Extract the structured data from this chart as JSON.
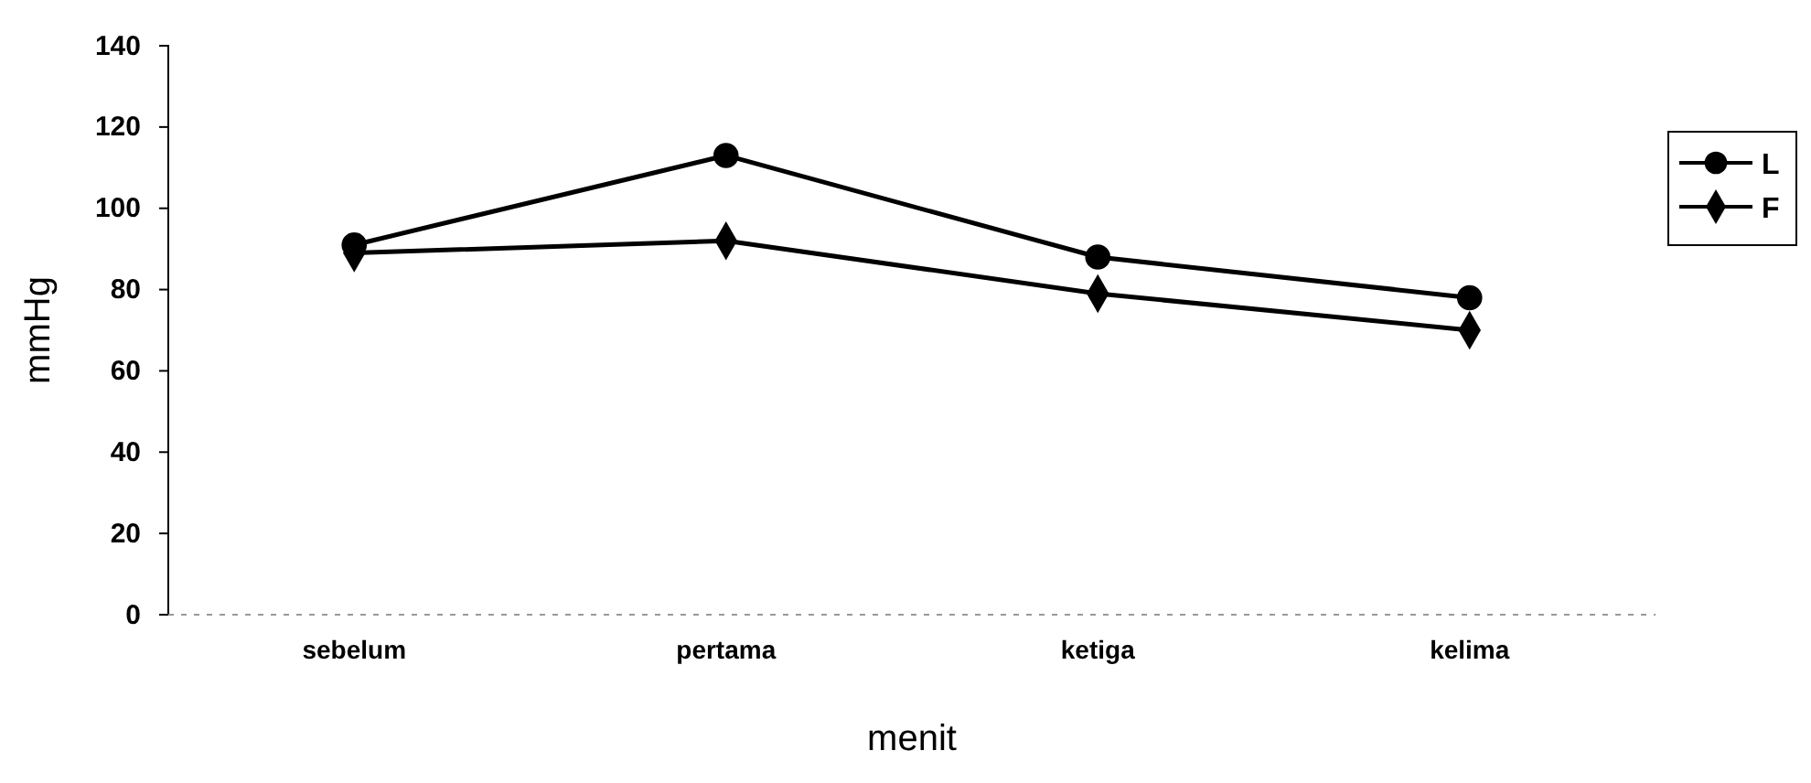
{
  "chart_data": {
    "type": "line",
    "xlabel": "menit",
    "ylabel": "mmHg",
    "categories": [
      "sebelum",
      "pertama",
      "ketiga",
      "kelima"
    ],
    "series": [
      {
        "name": "L",
        "color": "#000000",
        "marker": "circle",
        "values": [
          91,
          113,
          88,
          78
        ]
      },
      {
        "name": "F",
        "color": "#000000",
        "marker": "diamond",
        "values": [
          89,
          92,
          79,
          70
        ]
      }
    ],
    "ylim": [
      0,
      140
    ],
    "yticks": [
      0,
      20,
      40,
      60,
      80,
      100,
      120,
      140
    ],
    "grid": false,
    "legend": "right",
    "line_style": "solid"
  }
}
